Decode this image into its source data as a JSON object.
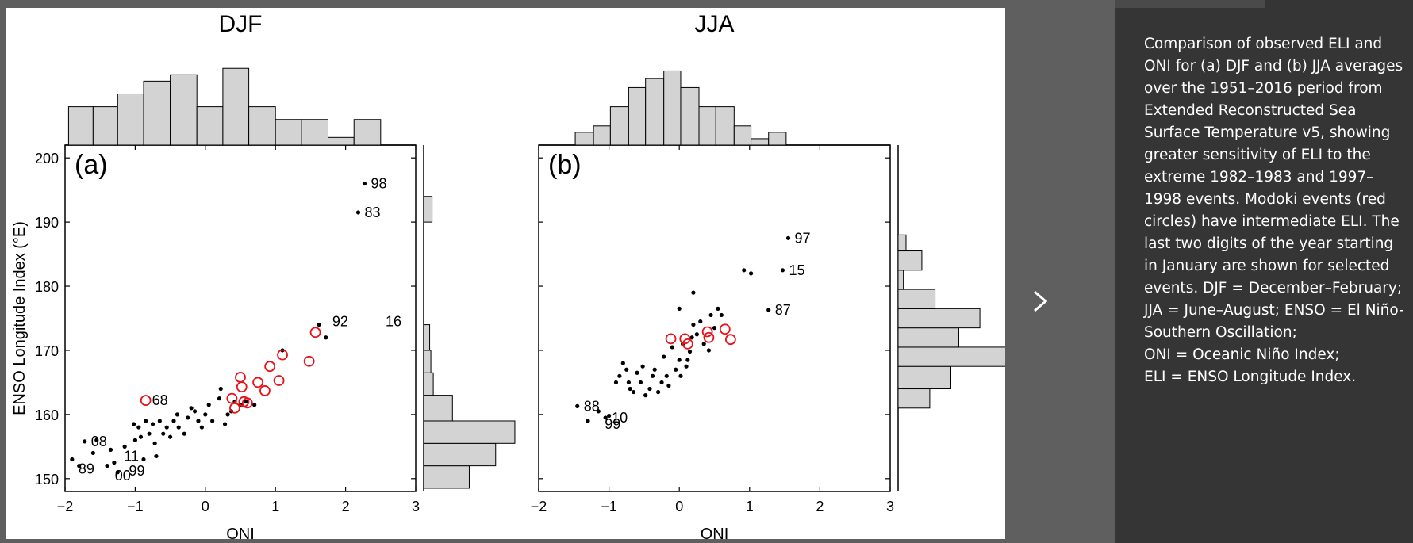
{
  "caption": {
    "body": "Comparison of observed ELI and ONI for (a) DJF and (b) JJA averages over the 1951–2016 period from Extended Reconstructed Sea Surface Temperature v5, showing greater sensitivity of ELI to the extreme 1982–1983 and 1997–1998 events. Modoki events (red circles) have intermediate ELI. The last two digits of the year starting in January are shown for selected events. DJF = December–February; JJA = June–August; ENSO = El Niño-Southern Oscillation;",
    "line2": "ONI = Oceanic Niño Index;",
    "line3": "ELI = ENSO Longitude Index."
  },
  "nav": {
    "next_icon": "chevron-right-icon"
  },
  "colors": {
    "modoki": "#e8121b",
    "bars": "#d3d3d3",
    "caption_bg": "#353535",
    "viewer_bg": "#5f5f5f"
  },
  "chart_data": [
    {
      "type": "scatter",
      "panel_label": "(a)",
      "title": "DJF",
      "xlabel": "ONI",
      "ylabel": "ENSO Longitude Index (°E)",
      "xlim": [
        -2,
        3
      ],
      "ylim": [
        148,
        202
      ],
      "xticks": [
        -2,
        -1,
        0,
        1,
        2,
        3
      ],
      "xtick_labels": [
        "−2",
        "−1",
        "0",
        "1",
        "2",
        "3"
      ],
      "yticks": [
        150,
        160,
        170,
        180,
        190,
        200
      ],
      "ytick_labels": [
        "150",
        "160",
        "170",
        "180",
        "190",
        "200"
      ],
      "points": [
        [
          -1.9,
          153
        ],
        [
          -1.8,
          152
        ],
        [
          -1.72,
          155.8
        ],
        [
          -1.6,
          154
        ],
        [
          -1.55,
          156
        ],
        [
          -1.4,
          152
        ],
        [
          -1.35,
          154.5
        ],
        [
          -1.3,
          152.5
        ],
        [
          -1.25,
          151
        ],
        [
          -1.15,
          155
        ],
        [
          -1.02,
          158.5
        ],
        [
          -1.0,
          156
        ],
        [
          -0.95,
          158
        ],
        [
          -0.92,
          156.5
        ],
        [
          -0.88,
          153
        ],
        [
          -0.85,
          159
        ],
        [
          -0.8,
          157
        ],
        [
          -0.75,
          158.5
        ],
        [
          -0.72,
          155.5
        ],
        [
          -0.7,
          153.5
        ],
        [
          -0.65,
          159
        ],
        [
          -0.6,
          157
        ],
        [
          -0.55,
          158
        ],
        [
          -0.5,
          156.5
        ],
        [
          -0.45,
          159
        ],
        [
          -0.4,
          160
        ],
        [
          -0.38,
          158
        ],
        [
          -0.3,
          157
        ],
        [
          -0.25,
          159.5
        ],
        [
          -0.2,
          161
        ],
        [
          -0.15,
          160.5
        ],
        [
          -0.1,
          159
        ],
        [
          -0.05,
          158
        ],
        [
          0.0,
          160
        ],
        [
          0.05,
          161.5
        ],
        [
          0.1,
          159
        ],
        [
          0.2,
          162.5
        ],
        [
          0.22,
          164
        ],
        [
          0.28,
          158.5
        ],
        [
          0.32,
          160
        ],
        [
          0.37,
          160.5
        ],
        [
          0.42,
          162
        ],
        [
          0.5,
          161.5
        ],
        [
          0.58,
          162
        ],
        [
          0.7,
          161.5
        ],
        [
          1.1,
          170
        ],
        [
          1.62,
          174
        ],
        [
          1.72,
          172
        ],
        [
          2.18,
          191.5
        ],
        [
          2.27,
          196
        ]
      ],
      "modoki": [
        [
          -0.85,
          162.2
        ],
        [
          0.38,
          162.5
        ],
        [
          0.42,
          161
        ],
        [
          0.5,
          165.8
        ],
        [
          0.52,
          164.3
        ],
        [
          0.55,
          162
        ],
        [
          0.6,
          161.8
        ],
        [
          0.75,
          165
        ],
        [
          0.85,
          163.7
        ],
        [
          0.92,
          167.5
        ],
        [
          1.05,
          165.3
        ],
        [
          1.1,
          169.3
        ],
        [
          1.48,
          168.3
        ],
        [
          1.57,
          172.8
        ]
      ],
      "highlights": [
        {
          "x": 2.27,
          "y": 196,
          "label": "98"
        },
        {
          "x": 2.18,
          "y": 191.5,
          "label": "83"
        },
        {
          "x": 1.72,
          "y": 174.5,
          "label": "92"
        },
        {
          "x": 2.48,
          "y": 174.5,
          "label": "16"
        },
        {
          "x": -0.85,
          "y": 162.2,
          "label": "68"
        },
        {
          "x": -1.72,
          "y": 155.8,
          "label": "08"
        },
        {
          "x": -1.25,
          "y": 153.5,
          "label": "11"
        },
        {
          "x": -1.9,
          "y": 151.5,
          "label": "89"
        },
        {
          "x": -1.38,
          "y": 150.5,
          "label": "00"
        },
        {
          "x": -1.18,
          "y": 151.2,
          "label": "99"
        }
      ],
      "hist_x": {
        "bin_edges": [
          -1.95,
          -1.6,
          -1.25,
          -0.88,
          -0.5,
          -0.12,
          0.25,
          0.62,
          1.0,
          1.37,
          1.75,
          2.12,
          2.5
        ],
        "counts": [
          3,
          3,
          4,
          5,
          5.5,
          3,
          6,
          3,
          2,
          2,
          0.6,
          2
        ]
      },
      "hist_y": {
        "bin_edges": [
          148.5,
          152,
          155.5,
          159,
          163,
          166.5,
          170,
          174,
          177,
          180,
          190,
          194
        ],
        "counts": [
          1.9,
          3,
          3.8,
          1.2,
          0.4,
          0.3,
          0.25,
          0,
          0,
          0,
          0.35
        ]
      }
    },
    {
      "type": "scatter",
      "panel_label": "(b)",
      "title": "JJA",
      "xlabel": "ONI",
      "xlim": [
        -2,
        3
      ],
      "ylim": [
        148,
        202
      ],
      "xticks": [
        -2,
        -1,
        0,
        1,
        2,
        3
      ],
      "xtick_labels": [
        "−2",
        "−1",
        "0",
        "1",
        "2",
        "3"
      ],
      "points": [
        [
          -1.45,
          161.3
        ],
        [
          -1.3,
          159
        ],
        [
          -1.15,
          160.5
        ],
        [
          -1.05,
          159.5
        ],
        [
          -1.0,
          159.8
        ],
        [
          -0.9,
          165
        ],
        [
          -0.85,
          166
        ],
        [
          -0.8,
          168
        ],
        [
          -0.75,
          167
        ],
        [
          -0.72,
          165
        ],
        [
          -0.7,
          164
        ],
        [
          -0.65,
          163.5
        ],
        [
          -0.6,
          166.5
        ],
        [
          -0.55,
          165
        ],
        [
          -0.52,
          167.5
        ],
        [
          -0.48,
          163
        ],
        [
          -0.42,
          164
        ],
        [
          -0.38,
          166
        ],
        [
          -0.35,
          167
        ],
        [
          -0.3,
          163.5
        ],
        [
          -0.25,
          165
        ],
        [
          -0.22,
          169
        ],
        [
          -0.18,
          166
        ],
        [
          -0.15,
          164.5
        ],
        [
          -0.1,
          170.5
        ],
        [
          -0.05,
          167
        ],
        [
          0.0,
          168.5
        ],
        [
          0.02,
          166
        ],
        [
          0.05,
          171
        ],
        [
          0.1,
          167.5
        ],
        [
          0.12,
          168.5
        ],
        [
          0.15,
          169.8
        ],
        [
          0.18,
          172
        ],
        [
          0.2,
          174
        ],
        [
          0.25,
          172.5
        ],
        [
          0.3,
          174.5
        ],
        [
          0.35,
          171
        ],
        [
          0.42,
          170
        ],
        [
          0.45,
          175.5
        ],
        [
          0.5,
          173.5
        ],
        [
          0.55,
          176.5
        ],
        [
          0.6,
          175.5
        ],
        [
          0.0,
          176.5
        ],
        [
          0.2,
          179
        ],
        [
          0.92,
          182.5
        ],
        [
          1.02,
          182
        ],
        [
          1.27,
          176.3
        ],
        [
          1.47,
          182.5
        ],
        [
          1.55,
          187.5
        ]
      ],
      "modoki": [
        [
          -0.12,
          171.8
        ],
        [
          0.08,
          171.8
        ],
        [
          0.12,
          171
        ],
        [
          0.4,
          172.9
        ],
        [
          0.42,
          172
        ],
        [
          0.65,
          173.3
        ],
        [
          0.73,
          171.7
        ]
      ],
      "highlights": [
        {
          "x": 1.55,
          "y": 187.5,
          "label": "97"
        },
        {
          "x": 1.47,
          "y": 182.5,
          "label": "15"
        },
        {
          "x": 1.27,
          "y": 176.3,
          "label": "87"
        },
        {
          "x": -1.45,
          "y": 161.3,
          "label": "88"
        },
        {
          "x": -1.05,
          "y": 159.5,
          "label": "10"
        },
        {
          "x": -1.15,
          "y": 158.5,
          "label": "99"
        }
      ],
      "hist_x": {
        "bin_edges": [
          -1.48,
          -1.22,
          -0.98,
          -0.72,
          -0.48,
          -0.22,
          0.02,
          0.28,
          0.52,
          0.78,
          1.02,
          1.27,
          1.52
        ],
        "counts": [
          1,
          1.5,
          3,
          4.5,
          5.2,
          5.8,
          4.5,
          3,
          3,
          1.5,
          0.5,
          1
        ]
      },
      "hist_y": {
        "bin_edges": [
          161,
          164,
          167.5,
          170.5,
          173.5,
          176.5,
          179.5,
          182.5,
          185.5,
          188
        ],
        "counts": [
          1.2,
          2,
          4.2,
          2.3,
          3.1,
          1.4,
          0.2,
          0.9,
          0.3
        ]
      }
    }
  ]
}
